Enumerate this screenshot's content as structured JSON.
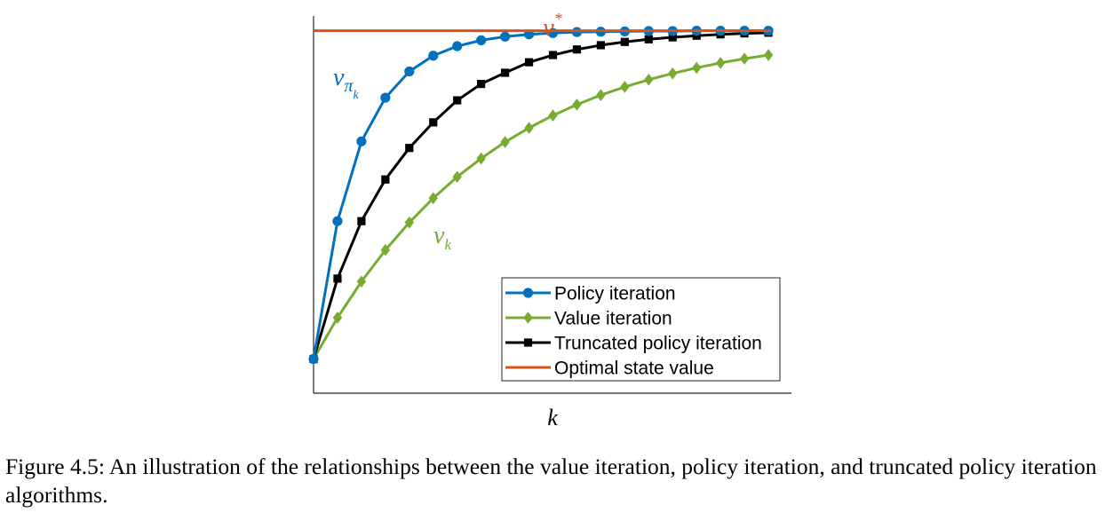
{
  "chart_data": {
    "type": "line",
    "xlabel": "k",
    "ylabel": "",
    "x": [
      0,
      1,
      2,
      3,
      4,
      5,
      6,
      7,
      8,
      9,
      10,
      11,
      12,
      13,
      14,
      15,
      16,
      17,
      18,
      19
    ],
    "xlim": [
      0,
      20
    ],
    "ylim": [
      -0.104,
      1.045
    ],
    "grid": false,
    "legend_position": "bottom-right",
    "series": [
      {
        "name": "Policy iteration",
        "color": "#0072BD",
        "marker": "circle",
        "values": [
          0.0,
          0.42,
          0.663,
          0.796,
          0.876,
          0.924,
          0.953,
          0.971,
          0.982,
          0.989,
          0.993,
          0.996,
          0.997,
          0.998,
          0.999,
          0.999,
          1.0,
          1.0,
          1.0,
          1.0
        ]
      },
      {
        "name": "Value iteration",
        "color": "#77AC30",
        "marker": "diamond",
        "values": [
          0.0,
          0.126,
          0.236,
          0.332,
          0.416,
          0.49,
          0.555,
          0.611,
          0.661,
          0.704,
          0.742,
          0.775,
          0.804,
          0.829,
          0.851,
          0.87,
          0.887,
          0.902,
          0.915,
          0.926
        ]
      },
      {
        "name": "Truncated policy iteration",
        "color": "#000000",
        "marker": "square",
        "values": [
          0.0,
          0.245,
          0.42,
          0.547,
          0.643,
          0.721,
          0.788,
          0.838,
          0.872,
          0.904,
          0.926,
          0.943,
          0.956,
          0.966,
          0.974,
          0.98,
          0.985,
          0.989,
          0.992,
          0.994
        ]
      },
      {
        "name": "Optimal state value",
        "color": "#D95319",
        "marker": "none",
        "values": [
          1,
          1,
          1,
          1,
          1,
          1,
          1,
          1,
          1,
          1,
          1,
          1,
          1,
          1,
          1,
          1,
          1,
          1,
          1,
          1
        ]
      }
    ],
    "annotations": {
      "v_star": {
        "base": "v",
        "sup": "*",
        "color": "#D95319"
      },
      "v_pi_k": {
        "base": "v",
        "sub": "π",
        "subsub": "k",
        "color": "#0072BD"
      },
      "v_k": {
        "base": "v",
        "sub": "k",
        "color": "#77AC30"
      }
    }
  },
  "caption": "Figure 4.5: An illustration of the relationships between the value iteration, policy iteration, and truncated policy iteration algorithms."
}
